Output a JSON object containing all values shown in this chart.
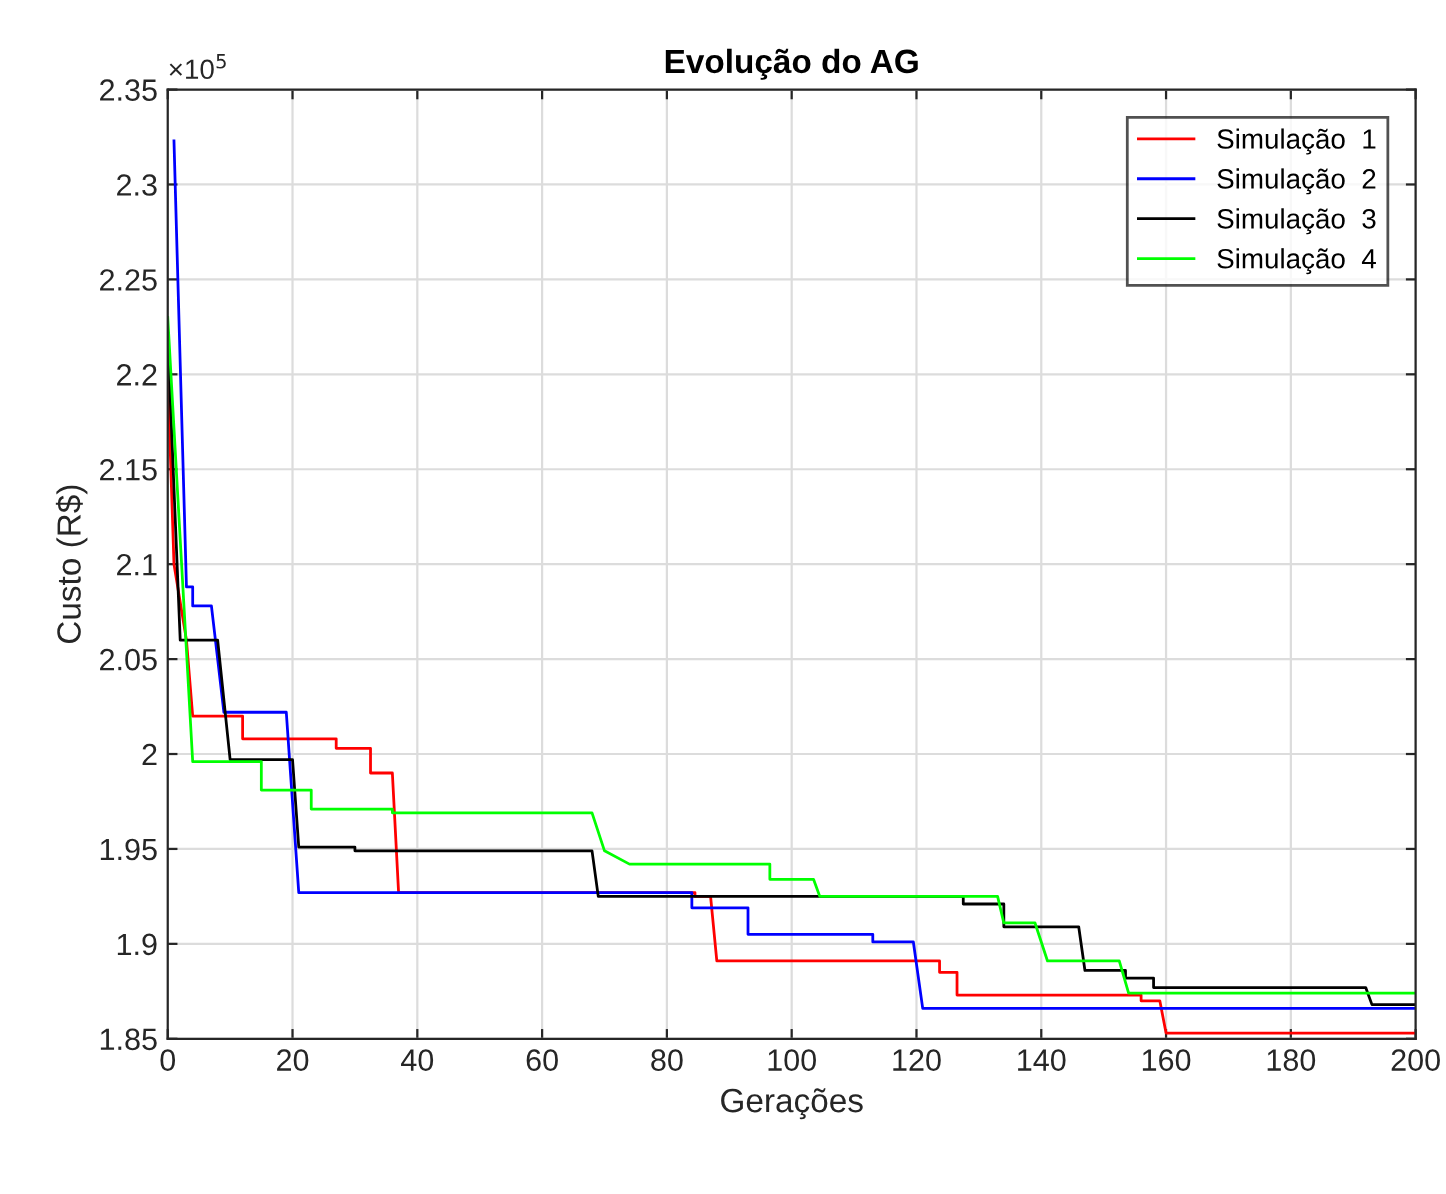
{
  "chart_data": {
    "type": "line",
    "title": "Evolução do AG",
    "xlabel": "Gerações",
    "ylabel": "Custo (R$)",
    "annotations": [
      "×10$^{5}$"
    ],
    "xlim": [
      0,
      200
    ],
    "ylim": [
      1.85,
      2.35
    ],
    "xticks": [
      0,
      20,
      40,
      60,
      80,
      100,
      120,
      140,
      160,
      180,
      200
    ],
    "yticks": [
      1.85,
      1.9,
      1.95,
      2,
      2.05,
      2.1,
      2.15,
      2.2,
      2.25,
      2.3,
      2.35
    ],
    "grid": true,
    "legend": "top right",
    "marker": "none",
    "line_style": "solid",
    "series": [
      {
        "name": "Simulação  1",
        "color": "#ff0000",
        "x": [
          0,
          1,
          3,
          4,
          12,
          12,
          27,
          27,
          32.5,
          32.5,
          36,
          37,
          84.5,
          84.5,
          87,
          88,
          123.7,
          123.7,
          126.5,
          126.5,
          156,
          156,
          159,
          160,
          200
        ],
        "values": [
          2.2,
          2.1,
          2.06,
          2.02,
          2.02,
          2.008,
          2.008,
          2.003,
          2.003,
          1.99,
          1.99,
          1.927,
          1.927,
          1.925,
          1.925,
          1.891,
          1.891,
          1.885,
          1.885,
          1.873,
          1.873,
          1.87,
          1.87,
          1.853,
          1.853
        ]
      },
      {
        "name": "Simulação  2",
        "color": "#0000ff",
        "x": [
          1,
          3,
          4,
          4,
          7,
          9,
          19,
          21,
          84,
          84,
          93,
          93,
          113,
          113,
          119.5,
          121,
          200
        ],
        "values": [
          2.323,
          2.088,
          2.088,
          2.078,
          2.078,
          2.022,
          2.022,
          1.927,
          1.927,
          1.919,
          1.919,
          1.905,
          1.905,
          1.901,
          1.901,
          1.866,
          1.866
        ]
      },
      {
        "name": "Simulação  3",
        "color": "#000000",
        "x": [
          0,
          2,
          8,
          10,
          20,
          21,
          30,
          30,
          68,
          69,
          127.5,
          127.5,
          134,
          134,
          146,
          147,
          153.5,
          153.5,
          158,
          158,
          192,
          193,
          200
        ],
        "values": [
          2.22,
          2.06,
          2.06,
          1.997,
          1.997,
          1.951,
          1.951,
          1.949,
          1.949,
          1.925,
          1.925,
          1.921,
          1.921,
          1.909,
          1.909,
          1.886,
          1.886,
          1.882,
          1.882,
          1.877,
          1.877,
          1.868,
          1.868
        ]
      },
      {
        "name": "Simulação  4",
        "color": "#00ff00",
        "x": [
          0,
          4,
          15,
          15,
          23,
          23,
          36,
          36,
          68,
          70,
          74,
          96.5,
          96.5,
          103.5,
          104.5,
          133,
          134,
          139,
          141,
          152.5,
          154,
          200
        ],
        "values": [
          2.23,
          1.996,
          1.996,
          1.981,
          1.981,
          1.971,
          1.971,
          1.969,
          1.969,
          1.949,
          1.942,
          1.942,
          1.934,
          1.934,
          1.925,
          1.925,
          1.911,
          1.911,
          1.891,
          1.891,
          1.874,
          1.874
        ]
      }
    ]
  }
}
